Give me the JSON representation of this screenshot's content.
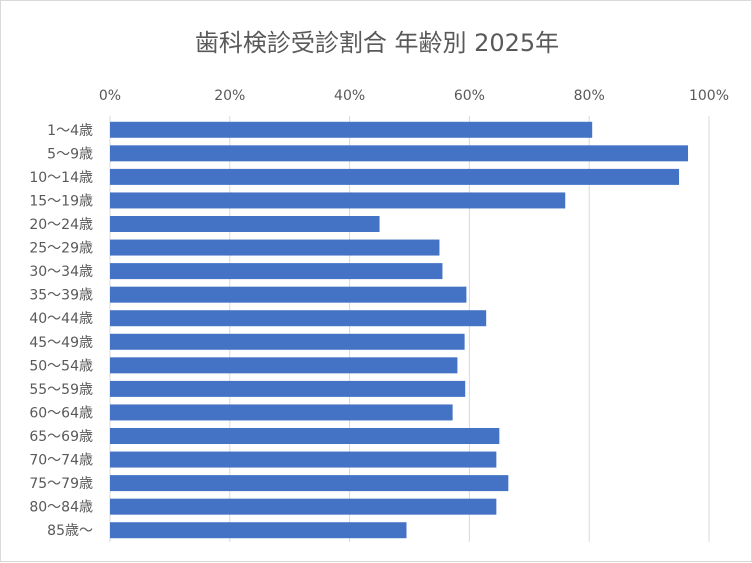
{
  "chart_data": {
    "type": "bar",
    "orientation": "horizontal",
    "title": "歯科検診受診割合 年齢別 2025年",
    "categories": [
      "1～4歳",
      "5～9歳",
      "10～14歳",
      "15～19歳",
      "20～24歳",
      "25～29歳",
      "30～34歳",
      "35～39歳",
      "40～44歳",
      "45～49歳",
      "50～54歳",
      "55～59歳",
      "60～64歳",
      "65～69歳",
      "70～74歳",
      "75～79歳",
      "80～84歳",
      "85歳～"
    ],
    "series": [
      {
        "values": [
          80.5,
          96.5,
          95,
          76,
          45,
          55,
          55.5,
          59.5,
          62.8,
          59.2,
          58,
          59.3,
          57.2,
          65,
          64.5,
          66.5,
          64.5,
          49.5
        ]
      }
    ],
    "xaxis": {
      "min": 0,
      "max": 100,
      "ticks": [
        "0%",
        "20%",
        "40%",
        "60%",
        "80%",
        "100%"
      ],
      "position": "top"
    },
    "grid": true,
    "legend": "none",
    "colors": {
      "bar": "#4472c4",
      "grid": "#d9d9d9",
      "text": "#595959"
    }
  }
}
